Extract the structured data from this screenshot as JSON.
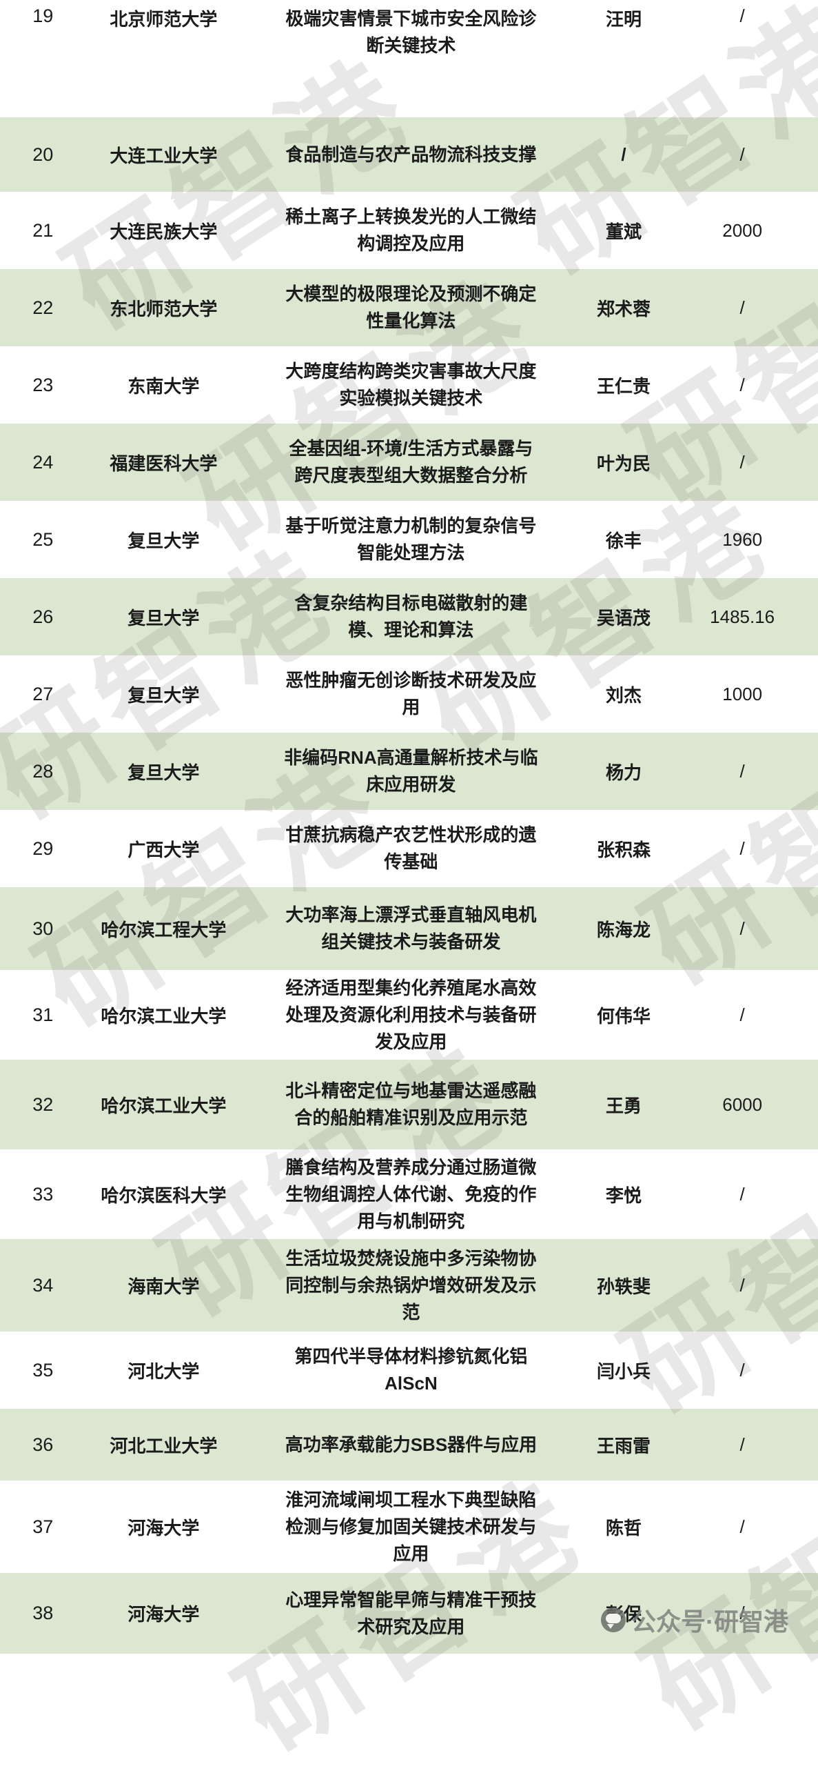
{
  "table": {
    "rows": [
      {
        "no": "19",
        "university": "北京师范大学",
        "title": "极端灾害情景下城市安全风险诊断关键技术",
        "leader": "汪明",
        "amount": "/"
      },
      {
        "no": "20",
        "university": "大连工业大学",
        "title": "食品制造与农产品物流科技支撑",
        "leader": "/",
        "amount": "/"
      },
      {
        "no": "21",
        "university": "大连民族大学",
        "title": "稀土离子上转换发光的人工微结构调控及应用",
        "leader": "董斌",
        "amount": "2000"
      },
      {
        "no": "22",
        "university": "东北师范大学",
        "title": "大模型的极限理论及预测不确定性量化算法",
        "leader": "郑术蓉",
        "amount": "/"
      },
      {
        "no": "23",
        "university": "东南大学",
        "title": "大跨度结构跨类灾害事故大尺度实验模拟关键技术",
        "leader": "王仁贵",
        "amount": "/"
      },
      {
        "no": "24",
        "university": "福建医科大学",
        "title": "全基因组-环境/生活方式暴露与跨尺度表型组大数据整合分析",
        "leader": "叶为民",
        "amount": "/"
      },
      {
        "no": "25",
        "university": "复旦大学",
        "title": "基于听觉注意力机制的复杂信号智能处理方法",
        "leader": "徐丰",
        "amount": "1960"
      },
      {
        "no": "26",
        "university": "复旦大学",
        "title": "含复杂结构目标电磁散射的建模、理论和算法",
        "leader": "吴语茂",
        "amount": "1485.16"
      },
      {
        "no": "27",
        "university": "复旦大学",
        "title": "恶性肿瘤无创诊断技术研发及应用",
        "leader": "刘杰",
        "amount": "1000"
      },
      {
        "no": "28",
        "university": "复旦大学",
        "title": "非编码RNA高通量解析技术与临床应用研发",
        "leader": "杨力",
        "amount": "/"
      },
      {
        "no": "29",
        "university": "广西大学",
        "title": "甘蔗抗病稳产农艺性状形成的遗传基础",
        "leader": "张积森",
        "amount": "/"
      },
      {
        "no": "30",
        "university": "哈尔滨工程大学",
        "title": "大功率海上漂浮式垂直轴风电机组关键技术与装备研发",
        "leader": "陈海龙",
        "amount": "/"
      },
      {
        "no": "31",
        "university": "哈尔滨工业大学",
        "title": "经济适用型集约化养殖尾水高效处理及资源化利用技术与装备研发及应用",
        "leader": "何伟华",
        "amount": "/"
      },
      {
        "no": "32",
        "university": "哈尔滨工业大学",
        "title": "北斗精密定位与地基雷达遥感融合的船舶精准识别及应用示范",
        "leader": "王勇",
        "amount": "6000"
      },
      {
        "no": "33",
        "university": "哈尔滨医科大学",
        "title": "膳食结构及营养成分通过肠道微生物组调控人体代谢、免疫的作用与机制研究",
        "leader": "李悦",
        "amount": "/"
      },
      {
        "no": "34",
        "university": "海南大学",
        "title": "生活垃圾焚烧设施中多污染物协同控制与余热锅炉增效研发及示范",
        "leader": "孙轶斐",
        "amount": "/"
      },
      {
        "no": "35",
        "university": "河北大学",
        "title": "第四代半导体材料掺钪氮化铝AlScN",
        "leader": "闫小兵",
        "amount": "/"
      },
      {
        "no": "36",
        "university": "河北工业大学",
        "title": "高功率承载能力SBS器件与应用",
        "leader": "王雨雷",
        "amount": "/"
      },
      {
        "no": "37",
        "university": "河海大学",
        "title": "淮河流域闸坝工程水下典型缺陷检测与修复加固关键技术研发与应用",
        "leader": "陈哲",
        "amount": "/"
      },
      {
        "no": "38",
        "university": "河海大学",
        "title": "心理异常智能早筛与精准干预技术研究及应用",
        "leader": "彭保",
        "amount": "/"
      }
    ]
  },
  "watermark": {
    "text": "研智港"
  },
  "footer": {
    "label": "公众号·研智港"
  },
  "colors": {
    "row_alt_bg": "#dbe7d1",
    "text": "#1b1b1b",
    "watermark": "#e3e3e3",
    "footer_text": "#a3a6a3"
  }
}
